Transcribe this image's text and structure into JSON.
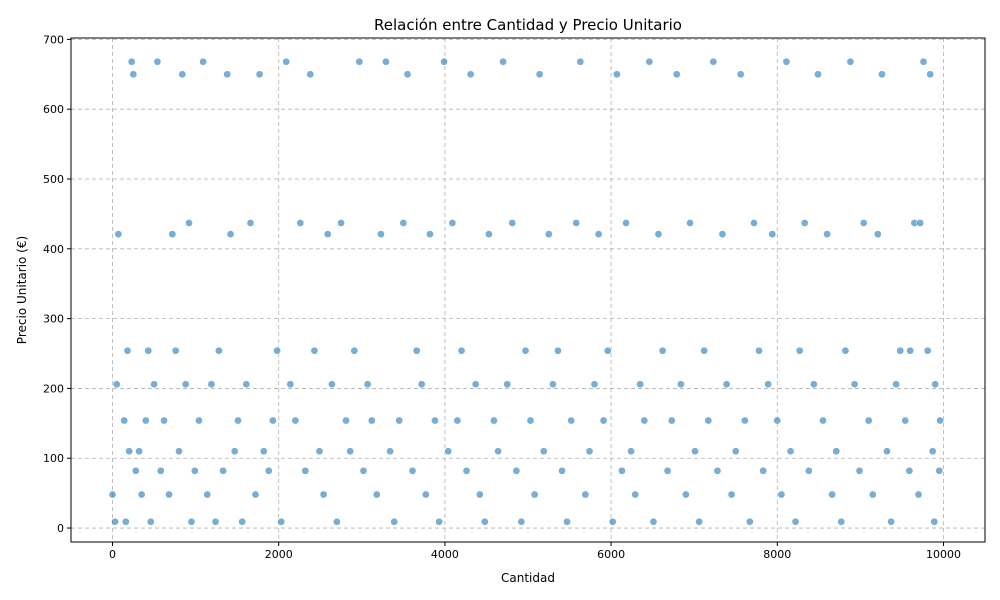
{
  "chart_data": {
    "type": "scatter",
    "title": "Relación entre Cantidad y Precio Unitario",
    "xlabel": "Cantidad",
    "ylabel": "Precio Unitario (€)",
    "xlim": [
      -500,
      10500
    ],
    "ylim": [
      -20,
      702
    ],
    "x_ticks": [
      0,
      2000,
      4000,
      6000,
      8000,
      10000
    ],
    "y_ticks": [
      0,
      100,
      200,
      300,
      400,
      500,
      600,
      700
    ],
    "grid": true,
    "legend": "none",
    "point_color": "#1f77b4",
    "price_levels": [
      8.5,
      47.5,
      82.0,
      109.5,
      153.0,
      206.5,
      254.5,
      421.5,
      437.5,
      650.5,
      668.0
    ],
    "points": [
      [
        0,
        48
      ],
      [
        30,
        9
      ],
      [
        50,
        206
      ],
      [
        70,
        421
      ],
      [
        140,
        154
      ],
      [
        160,
        9
      ],
      [
        180,
        254
      ],
      [
        200,
        110
      ],
      [
        230,
        668
      ],
      [
        250,
        650
      ],
      [
        280,
        82
      ],
      [
        320,
        110
      ],
      [
        350,
        48
      ],
      [
        400,
        154
      ],
      [
        430,
        254
      ],
      [
        460,
        9
      ],
      [
        500,
        206
      ],
      [
        540,
        668
      ],
      [
        580,
        82
      ],
      [
        620,
        154
      ],
      [
        680,
        48
      ],
      [
        720,
        421
      ],
      [
        760,
        254
      ],
      [
        800,
        110
      ],
      [
        840,
        650
      ],
      [
        880,
        206
      ],
      [
        920,
        437
      ],
      [
        950,
        9
      ],
      [
        990,
        82
      ],
      [
        1040,
        154
      ],
      [
        1090,
        668
      ],
      [
        1140,
        48
      ],
      [
        1190,
        206
      ],
      [
        1240,
        9
      ],
      [
        1280,
        254
      ],
      [
        1330,
        82
      ],
      [
        1380,
        650
      ],
      [
        1420,
        421
      ],
      [
        1470,
        110
      ],
      [
        1510,
        154
      ],
      [
        1560,
        9
      ],
      [
        1610,
        206
      ],
      [
        1660,
        437
      ],
      [
        1720,
        48
      ],
      [
        1770,
        650
      ],
      [
        1820,
        110
      ],
      [
        1880,
        82
      ],
      [
        1930,
        154
      ],
      [
        1980,
        254
      ],
      [
        2030,
        9
      ],
      [
        2090,
        668
      ],
      [
        2140,
        206
      ],
      [
        2200,
        154
      ],
      [
        2260,
        437
      ],
      [
        2320,
        82
      ],
      [
        2380,
        650
      ],
      [
        2430,
        254
      ],
      [
        2490,
        110
      ],
      [
        2540,
        48
      ],
      [
        2590,
        421
      ],
      [
        2640,
        206
      ],
      [
        2700,
        9
      ],
      [
        2750,
        437
      ],
      [
        2810,
        154
      ],
      [
        2860,
        110
      ],
      [
        2910,
        254
      ],
      [
        2970,
        668
      ],
      [
        3020,
        82
      ],
      [
        3070,
        206
      ],
      [
        3120,
        154
      ],
      [
        3180,
        48
      ],
      [
        3230,
        421
      ],
      [
        3290,
        668
      ],
      [
        3340,
        110
      ],
      [
        3390,
        9
      ],
      [
        3450,
        154
      ],
      [
        3500,
        437
      ],
      [
        3550,
        650
      ],
      [
        3610,
        82
      ],
      [
        3660,
        254
      ],
      [
        3720,
        206
      ],
      [
        3770,
        48
      ],
      [
        3820,
        421
      ],
      [
        3880,
        154
      ],
      [
        3930,
        9
      ],
      [
        3990,
        668
      ],
      [
        4040,
        110
      ],
      [
        4090,
        437
      ],
      [
        4150,
        154
      ],
      [
        4200,
        254
      ],
      [
        4260,
        82
      ],
      [
        4310,
        650
      ],
      [
        4370,
        206
      ],
      [
        4420,
        48
      ],
      [
        4480,
        9
      ],
      [
        4530,
        421
      ],
      [
        4590,
        154
      ],
      [
        4640,
        110
      ],
      [
        4700,
        668
      ],
      [
        4750,
        206
      ],
      [
        4810,
        437
      ],
      [
        4860,
        82
      ],
      [
        4920,
        9
      ],
      [
        4970,
        254
      ],
      [
        5030,
        154
      ],
      [
        5080,
        48
      ],
      [
        5140,
        650
      ],
      [
        5190,
        110
      ],
      [
        5250,
        421
      ],
      [
        5300,
        206
      ],
      [
        5360,
        254
      ],
      [
        5410,
        82
      ],
      [
        5470,
        9
      ],
      [
        5520,
        154
      ],
      [
        5580,
        437
      ],
      [
        5630,
        668
      ],
      [
        5690,
        48
      ],
      [
        5740,
        110
      ],
      [
        5800,
        206
      ],
      [
        5850,
        421
      ],
      [
        5910,
        154
      ],
      [
        5960,
        254
      ],
      [
        6020,
        9
      ],
      [
        6070,
        650
      ],
      [
        6130,
        82
      ],
      [
        6180,
        437
      ],
      [
        6240,
        110
      ],
      [
        6290,
        48
      ],
      [
        6350,
        206
      ],
      [
        6400,
        154
      ],
      [
        6460,
        668
      ],
      [
        6510,
        9
      ],
      [
        6570,
        421
      ],
      [
        6620,
        254
      ],
      [
        6680,
        82
      ],
      [
        6730,
        154
      ],
      [
        6790,
        650
      ],
      [
        6840,
        206
      ],
      [
        6900,
        48
      ],
      [
        6950,
        437
      ],
      [
        7010,
        110
      ],
      [
        7060,
        9
      ],
      [
        7120,
        254
      ],
      [
        7170,
        154
      ],
      [
        7230,
        668
      ],
      [
        7280,
        82
      ],
      [
        7340,
        421
      ],
      [
        7390,
        206
      ],
      [
        7450,
        48
      ],
      [
        7500,
        110
      ],
      [
        7560,
        650
      ],
      [
        7610,
        154
      ],
      [
        7670,
        9
      ],
      [
        7720,
        437
      ],
      [
        7780,
        254
      ],
      [
        7830,
        82
      ],
      [
        7890,
        206
      ],
      [
        7940,
        421
      ],
      [
        8000,
        154
      ],
      [
        8050,
        48
      ],
      [
        8110,
        668
      ],
      [
        8160,
        110
      ],
      [
        8220,
        9
      ],
      [
        8270,
        254
      ],
      [
        8330,
        437
      ],
      [
        8380,
        82
      ],
      [
        8440,
        206
      ],
      [
        8490,
        650
      ],
      [
        8550,
        154
      ],
      [
        8600,
        421
      ],
      [
        8660,
        48
      ],
      [
        8710,
        110
      ],
      [
        8770,
        9
      ],
      [
        8820,
        254
      ],
      [
        8880,
        668
      ],
      [
        8930,
        206
      ],
      [
        8990,
        82
      ],
      [
        9040,
        437
      ],
      [
        9100,
        154
      ],
      [
        9150,
        48
      ],
      [
        9210,
        421
      ],
      [
        9260,
        650
      ],
      [
        9320,
        110
      ],
      [
        9370,
        9
      ],
      [
        9430,
        206
      ],
      [
        9480,
        254
      ],
      [
        9540,
        154
      ],
      [
        9590,
        82
      ],
      [
        9650,
        437
      ],
      [
        9700,
        48
      ],
      [
        9760,
        668
      ],
      [
        9810,
        254
      ],
      [
        9870,
        110
      ],
      [
        9900,
        206
      ],
      [
        9950,
        82
      ],
      [
        9960,
        154
      ],
      [
        9890,
        9
      ],
      [
        9840,
        650
      ],
      [
        9720,
        437
      ],
      [
        9600,
        254
      ]
    ]
  }
}
